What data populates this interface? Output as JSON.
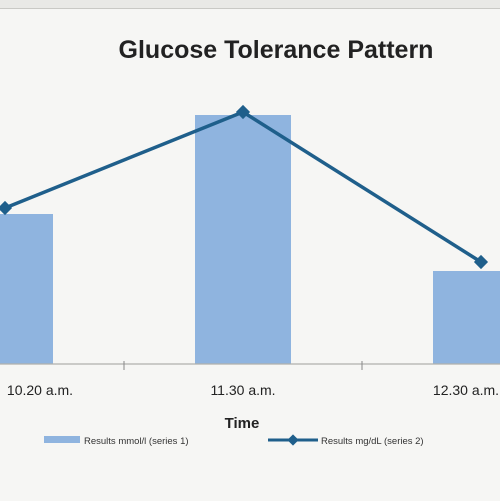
{
  "chart_data": {
    "type": "bar",
    "title": "Glucose Tolerance Pattern",
    "xlabel": "Time",
    "ylabel": "",
    "categories": [
      "10.20 a.m.",
      "11.30 a.m.",
      "12.30 a.m."
    ],
    "ylim": [
      0,
      100
    ],
    "grid": false,
    "legend_position": "bottom",
    "series": [
      {
        "name": "Results mmol/l (series 1)",
        "kind": "bar",
        "color": "#8fb4df",
        "values": [
          50,
          83,
          31
        ]
      },
      {
        "name": "Results mg/dL (series 2)",
        "kind": "line",
        "color": "#1f5f8b",
        "values": [
          52,
          84,
          34
        ]
      }
    ]
  }
}
